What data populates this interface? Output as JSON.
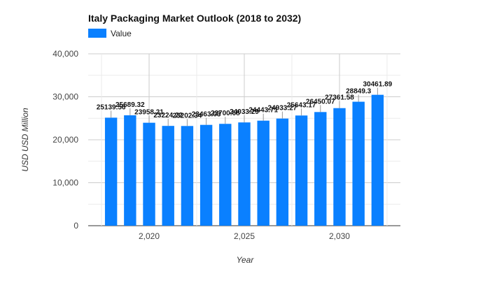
{
  "chart_data": {
    "type": "bar",
    "title": "Italy Packaging Market Outlook (2018 to 2032)",
    "xlabel": "Year",
    "ylabel": "USD USD Million",
    "legend": {
      "position": "top-left",
      "entries": [
        "Value"
      ]
    },
    "grid": true,
    "ylim": [
      0,
      40000
    ],
    "xlim": [
      2016.8,
      2033.2
    ],
    "y_ticks": [
      "0",
      "10,000",
      "20,000",
      "30,000",
      "40,000"
    ],
    "y_tick_values": [
      0,
      10000,
      20000,
      30000,
      40000
    ],
    "x_ticks": [
      "2,020",
      "2,025",
      "2,030"
    ],
    "x_tick_values": [
      2020,
      2025,
      2030
    ],
    "x_minor_grid_values": [
      2017.5,
      2022.5,
      2027.5,
      2032.5
    ],
    "x": [
      2018,
      2019,
      2020,
      2021,
      2022,
      2023,
      2024,
      2025,
      2026,
      2027,
      2028,
      2029,
      2030,
      2031,
      2032
    ],
    "series": [
      {
        "name": "Value",
        "color": "#0a80ff",
        "values": [
          25139.56,
          25689.32,
          23958.21,
          23224.22,
          23202.34,
          23463.03,
          23700.68,
          24033.29,
          24443.71,
          24933.27,
          25643.17,
          26450.07,
          27361.58,
          28849.3,
          30461.89
        ],
        "labels": [
          "25139.56",
          "25689.32",
          "23958.21",
          "23224.22",
          "23202.34",
          "23463.03",
          "23700.68",
          "24033.29",
          "24443.71",
          "24933.27",
          "25643.17",
          "26450.07",
          "27361.58",
          "28849.3",
          "30461.89"
        ]
      }
    ]
  }
}
